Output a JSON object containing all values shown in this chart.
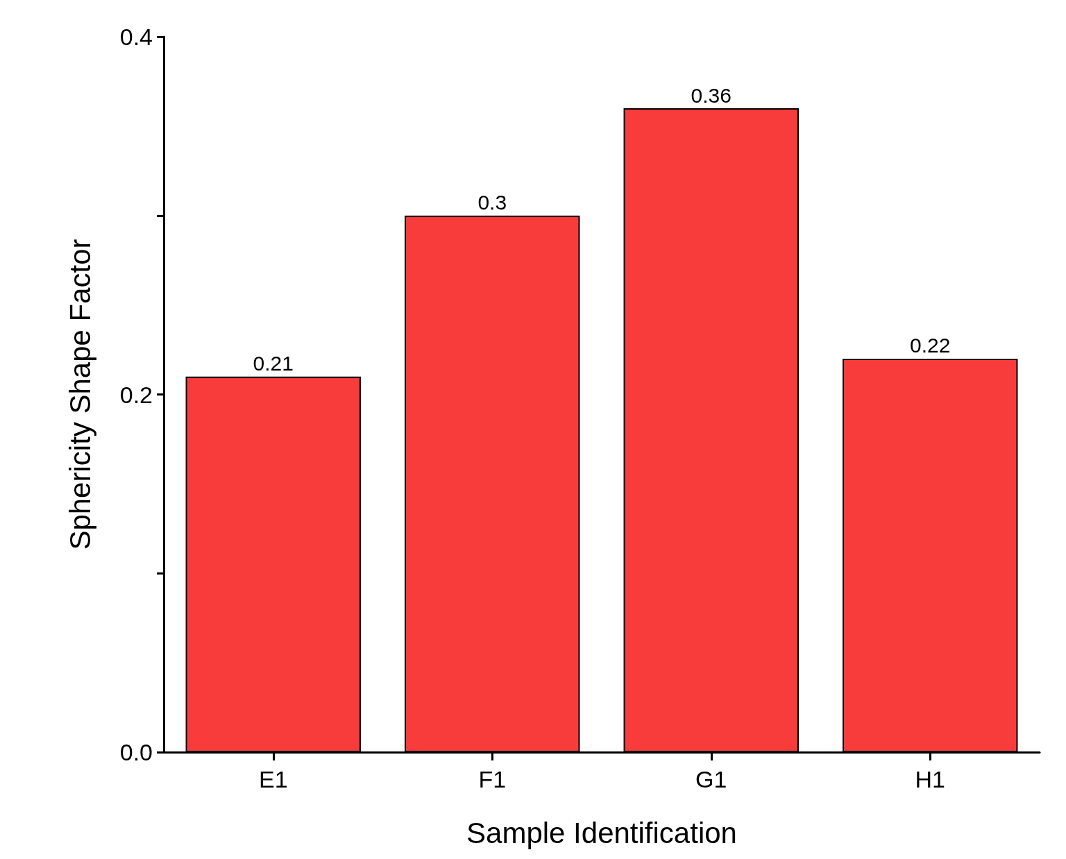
{
  "chart_data": {
    "type": "bar",
    "xlabel": "Sample Identification",
    "ylabel": "Sphericity Shape Factor",
    "categories": [
      "E1",
      "F1",
      "G1",
      "H1"
    ],
    "values": [
      0.21,
      0.3,
      0.36,
      0.22
    ],
    "color": "#f83c3c",
    "ylim": [
      0,
      0.4
    ],
    "yticks": [
      {
        "value": 0,
        "label": "0.0"
      },
      {
        "value": 0.1,
        "label": null
      },
      {
        "value": 0.2,
        "label": "0.2"
      },
      {
        "value": 0.3,
        "label": null
      },
      {
        "value": 0.4,
        "label": "0.4"
      }
    ],
    "data_labels": true,
    "grid": false
  }
}
